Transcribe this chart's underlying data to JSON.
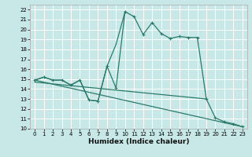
{
  "xlabel": "Humidex (Indice chaleur)",
  "bg_color": "#c8e8e8",
  "grid_color": "#b0d4d4",
  "line_color": "#2a7a6a",
  "xlim": [
    -0.5,
    23.5
  ],
  "ylim": [
    10,
    22.5
  ],
  "xticks": [
    0,
    1,
    2,
    3,
    4,
    5,
    6,
    7,
    8,
    9,
    10,
    11,
    12,
    13,
    14,
    15,
    16,
    17,
    18,
    19,
    20,
    21,
    22,
    23
  ],
  "yticks": [
    10,
    11,
    12,
    13,
    14,
    15,
    16,
    17,
    18,
    19,
    20,
    21,
    22
  ],
  "curve_x": [
    0,
    1,
    2,
    3,
    4,
    5,
    6,
    7,
    8,
    9,
    10,
    11,
    12,
    13,
    14,
    15,
    16,
    17,
    18,
    19,
    20,
    21,
    22,
    23
  ],
  "curve_y": [
    14.9,
    15.2,
    14.9,
    14.9,
    14.4,
    14.9,
    12.9,
    12.8,
    16.3,
    14.1,
    21.8,
    21.3,
    19.5,
    20.7,
    19.6,
    19.1,
    19.3,
    19.2,
    19.2,
    13.0,
    11.1,
    10.7,
    10.5,
    10.2
  ],
  "upper_curve_x": [
    0,
    1,
    2,
    3,
    4,
    5,
    6,
    7,
    8,
    9,
    10
  ],
  "upper_curve_y": [
    14.9,
    15.2,
    14.9,
    14.9,
    14.4,
    14.9,
    12.9,
    12.8,
    16.3,
    18.5,
    21.8
  ],
  "reg_line_x": [
    0,
    23
  ],
  "reg_line_y": [
    14.9,
    10.2
  ],
  "reg_line2_x": [
    0,
    19
  ],
  "reg_line2_y": [
    14.7,
    13.0
  ]
}
